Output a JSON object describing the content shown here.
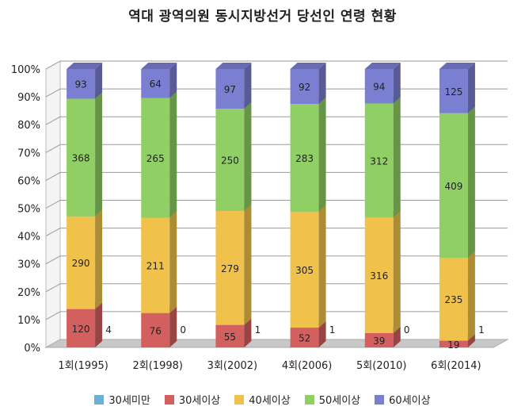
{
  "chart_data": {
    "type": "bar",
    "stacked": "percent",
    "style": "3d-column",
    "title": "역대 광역의원 동시지방선거 당선인 연령 현황",
    "categories": [
      "1회(1995)",
      "2회(1998)",
      "3회(2002)",
      "4회(2006)",
      "5회(2010)",
      "6회(2014)"
    ],
    "series": [
      {
        "name": "30세미만",
        "color": "#6baed6",
        "values": [
          0,
          0,
          0,
          0,
          0,
          0
        ]
      },
      {
        "name": "30세이상",
        "color": "#d45f5f",
        "values": [
          120,
          76,
          55,
          52,
          39,
          19
        ]
      },
      {
        "name": "40세이상",
        "color": "#f0c24b",
        "values": [
          290,
          211,
          279,
          305,
          316,
          235
        ]
      },
      {
        "name": "50세이상",
        "color": "#8fcf63",
        "values": [
          368,
          265,
          250,
          283,
          312,
          409
        ]
      },
      {
        "name": "60세이상",
        "color": "#7b7fd1",
        "values": [
          93,
          64,
          97,
          92,
          94,
          125
        ]
      }
    ],
    "side_labels": [
      "4",
      "0",
      "1",
      "1",
      "0",
      "1"
    ],
    "yticks": [
      "0%",
      "10%",
      "20%",
      "30%",
      "40%",
      "50%",
      "60%",
      "70%",
      "80%",
      "90%",
      "100%"
    ],
    "ylim": [
      0,
      100
    ],
    "grid": true,
    "legend_position": "bottom"
  }
}
